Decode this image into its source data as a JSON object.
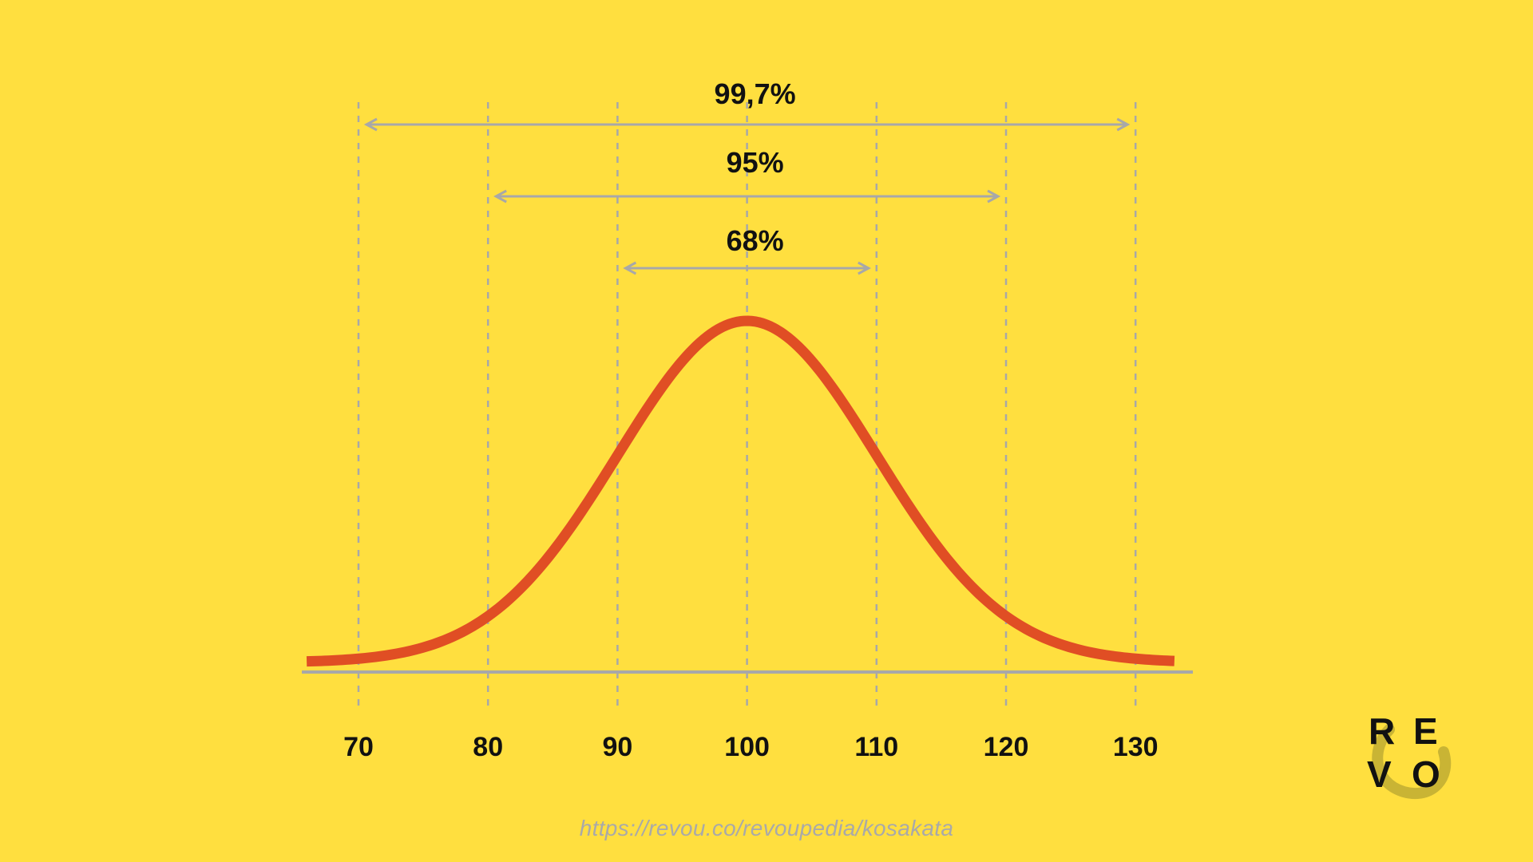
{
  "chart_data": {
    "type": "line",
    "subtype": "normal-distribution",
    "mean": 100,
    "std_dev": 10,
    "x_ticks": [
      70,
      80,
      90,
      100,
      110,
      120,
      130
    ],
    "xlim": [
      66,
      133
    ],
    "grid": "dashed vertical lines at each tick",
    "intervals": [
      {
        "label": "99,7%",
        "from": 70,
        "to": 130
      },
      {
        "label": "95%",
        "from": 80,
        "to": 120
      },
      {
        "label": "68%",
        "from": 90,
        "to": 110
      }
    ]
  },
  "source": {
    "url_text": "https://revou.co/revoupedia/kosakata"
  },
  "logo": {
    "letters": [
      "R",
      "E",
      "V",
      "O"
    ],
    "icon": "revou-logo"
  },
  "colors": {
    "background": "#FFDF3F",
    "curve": "#E04E24",
    "guides": "#A8A8A8",
    "text": "#111111"
  }
}
